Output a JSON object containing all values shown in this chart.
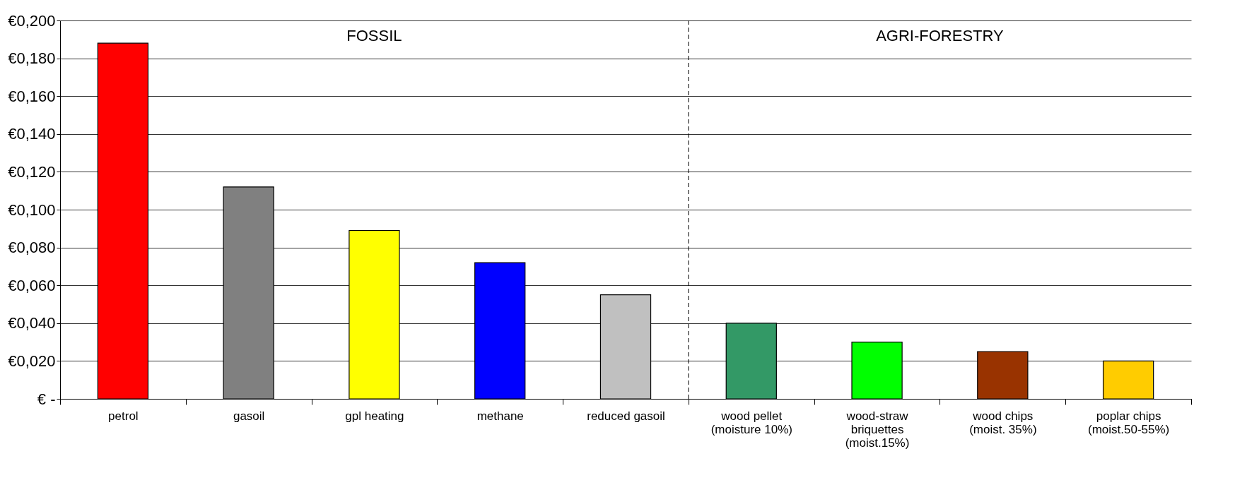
{
  "chart_data": {
    "type": "bar",
    "categories": [
      "petrol",
      "gasoil",
      "gpl heating",
      "methane",
      "reduced gasoil",
      "wood pellet\n(moisture 10%)",
      "wood-straw\nbriquettes\n(moist.15%)",
      "wood chips\n(moist. 35%)",
      "poplar chips\n(moist.50-55%)"
    ],
    "values": [
      0.188,
      0.112,
      0.089,
      0.072,
      0.055,
      0.04,
      0.03,
      0.025,
      0.02
    ],
    "colors": [
      "#ff0000",
      "#808080",
      "#ffff00",
      "#0000ff",
      "#c0c0c0",
      "#339966",
      "#00ff00",
      "#993300",
      "#ffcc00"
    ],
    "ylim": [
      0,
      0.2
    ],
    "yticks": [
      {
        "value": 0,
        "label": "€ -"
      },
      {
        "value": 0.02,
        "label": "€0,020"
      },
      {
        "value": 0.04,
        "label": "€0,040"
      },
      {
        "value": 0.06,
        "label": "€0,060"
      },
      {
        "value": 0.08,
        "label": "€0,080"
      },
      {
        "value": 0.1,
        "label": "€0,100"
      },
      {
        "value": 0.12,
        "label": "€0,120"
      },
      {
        "value": 0.14,
        "label": "€0,140"
      },
      {
        "value": 0.16,
        "label": "€0,160"
      },
      {
        "value": 0.18,
        "label": "€0,180"
      },
      {
        "value": 0.2,
        "label": "€0,200"
      }
    ],
    "grid": "y",
    "ref_lines": [
      {
        "axis": "x",
        "value": "reduced gasoil",
        "line_style": "dashed",
        "color": "#000000"
      }
    ],
    "annotations": [
      "FOSSIL",
      "AGRI-FORESTRY"
    ]
  }
}
